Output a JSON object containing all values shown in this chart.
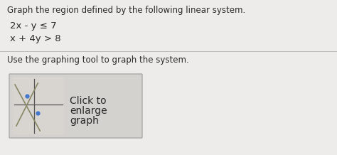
{
  "title_text": "Graph the region defined by the following linear system.",
  "line1": "2x - y ≤ 7",
  "line2": "x + 4y > 8",
  "instruction": "Use the graphing tool to graph the system.",
  "button_text_line1": "Click to",
  "button_text_line2": "enlarge",
  "button_text_line3": "graph",
  "panel_bg": "#edecea",
  "box_bg": "#d4d2cf",
  "title_fontsize": 8.5,
  "body_fontsize": 9.5,
  "text_color": "#2a2a2a",
  "divider_color": "#bbbbbb",
  "graph_bg": "#d8d5d0",
  "graph_line_color": "#555555",
  "graph_dot_color": "#4477cc",
  "box_border_color": "#aaaaaa"
}
